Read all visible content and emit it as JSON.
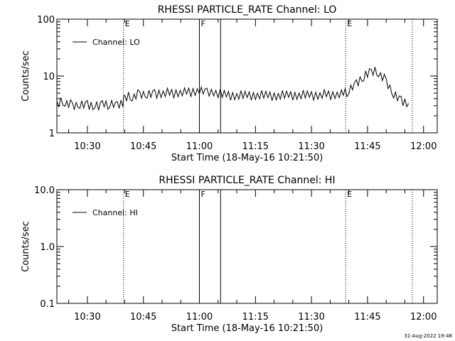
{
  "footer_stamp": "31-Aug-2022 19:48",
  "chart_data": [
    {
      "type": "line",
      "title": "RHESSI PARTICLE_RATE Channel: LO",
      "xlabel": "Start Time (18-May-16 10:21:50)",
      "ylabel": "Counts/sec",
      "yscale": "log",
      "ylim": [
        1,
        100
      ],
      "yticks": [
        {
          "v": 1,
          "label": "1"
        },
        {
          "v": 10,
          "label": "10"
        },
        {
          "v": 100,
          "label": "100"
        }
      ],
      "xlim": [
        "10:21:50",
        "12:03:40"
      ],
      "xticks": [
        "10:30",
        "10:45",
        "11:00",
        "11:15",
        "11:30",
        "11:45",
        "12:00"
      ],
      "legend": "Channel: LO",
      "legend_position": "top-left",
      "markers": [
        {
          "time": "10:39:40",
          "label": "E",
          "style": "dotted"
        },
        {
          "time": "11:00:00",
          "label": "F",
          "style": "solid"
        },
        {
          "time": "11:05:40",
          "label": "",
          "style": "solid"
        },
        {
          "time": "11:39:10",
          "label": "E",
          "style": "dotted"
        },
        {
          "time": "11:57:00",
          "label": "",
          "style": "dotted"
        }
      ],
      "series": [
        {
          "name": "Channel: LO",
          "x": [
            "10:21:50",
            "10:24:00",
            "10:26:00",
            "10:28:00",
            "10:30:00",
            "10:32:00",
            "10:34:00",
            "10:36:00",
            "10:38:00",
            "10:39:30",
            "10:40:00",
            "10:42:00",
            "10:44:00",
            "10:46:00",
            "10:48:00",
            "10:52:00",
            "10:56:00",
            "11:00:00",
            "11:02:00",
            "11:05:00",
            "11:10:00",
            "11:15:00",
            "11:20:00",
            "11:25:00",
            "11:30:00",
            "11:34:00",
            "11:38:00",
            "11:40:00",
            "11:42:00",
            "11:44:00",
            "11:46:00",
            "11:48:00",
            "11:50:00",
            "11:52:00",
            "11:54:00",
            "11:56:00"
          ],
          "values": [
            3.3,
            3.5,
            3.0,
            3.3,
            3.2,
            3.0,
            3.1,
            3.2,
            2.9,
            3.3,
            4.2,
            4.3,
            4.8,
            5.0,
            5.0,
            5.0,
            5.2,
            5.5,
            5.0,
            4.8,
            4.5,
            4.6,
            4.5,
            4.6,
            4.6,
            4.7,
            4.8,
            5.5,
            7.0,
            9.5,
            12.0,
            11.5,
            8.0,
            5.0,
            3.8,
            3.3
          ]
        }
      ]
    },
    {
      "type": "line",
      "title": "RHESSI PARTICLE_RATE Channel: HI",
      "xlabel": "Start Time (18-May-16 10:21:50)",
      "ylabel": "Counts/sec",
      "yscale": "log",
      "ylim": [
        0.1,
        10
      ],
      "yticks": [
        {
          "v": 0.1,
          "label": "0.1"
        },
        {
          "v": 1,
          "label": "1.0"
        },
        {
          "v": 10,
          "label": "10.0"
        }
      ],
      "xlim": [
        "10:21:50",
        "12:03:40"
      ],
      "xticks": [
        "10:30",
        "10:45",
        "11:00",
        "11:15",
        "11:30",
        "11:45",
        "12:00"
      ],
      "legend": "Channel: HI",
      "legend_position": "top-left",
      "markers": [
        {
          "time": "10:39:40",
          "label": "E",
          "style": "dotted"
        },
        {
          "time": "11:00:00",
          "label": "F",
          "style": "solid"
        },
        {
          "time": "11:05:40",
          "label": "",
          "style": "solid"
        },
        {
          "time": "11:39:10",
          "label": "E",
          "style": "dotted"
        },
        {
          "time": "11:57:00",
          "label": "",
          "style": "dotted"
        }
      ],
      "series": [
        {
          "name": "Channel: HI",
          "x": [],
          "values": []
        }
      ]
    }
  ]
}
